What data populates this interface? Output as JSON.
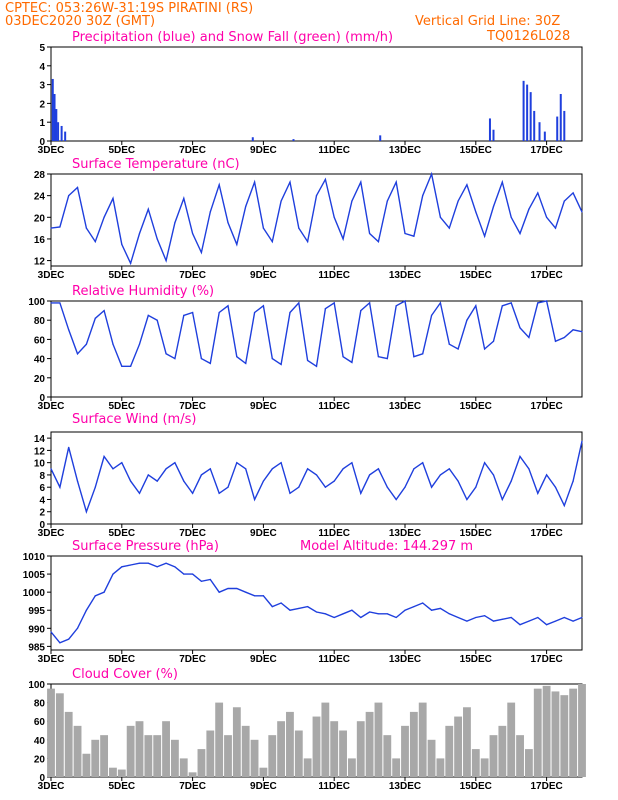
{
  "header": {
    "line1": "CPTEC:   053:26W-31:19S   PIRATINI (RS)",
    "line2": "03DEC2020 30Z (GMT)",
    "grid_note": "Vertical Grid Line: 30Z",
    "code": "TQ0126L028"
  },
  "colors": {
    "header": "#ff6a00",
    "title": "#ff00aa",
    "line": "#1f3fdd",
    "snow": "#00aa00",
    "cloud": "#a8a8a8",
    "arrow": "#000000"
  },
  "x_axis": {
    "labels": [
      "3DEC",
      "5DEC",
      "7DEC",
      "9DEC",
      "11DEC",
      "13DEC",
      "15DEC",
      "17DEC"
    ]
  },
  "chart_data": [
    {
      "type": "bar",
      "title": "Precipitation (blue) and Snow Fall (green) (mm/h)",
      "ylim": [
        0,
        5
      ],
      "yticks": [
        "0",
        "1",
        "2",
        "3",
        "4",
        "5"
      ],
      "series": [
        {
          "name": "Precipitation",
          "x": [
            0.05,
            0.1,
            0.15,
            0.2,
            0.3,
            0.4,
            5.7,
            6.85,
            9.3,
            12.4,
            12.5,
            13.35,
            13.45,
            13.55,
            13.65,
            13.8,
            13.95,
            14.3,
            14.4,
            14.5
          ],
          "values": [
            3.3,
            2.5,
            1.7,
            1.0,
            0.8,
            0.5,
            0.2,
            0.1,
            0.3,
            1.2,
            0.6,
            3.2,
            3.0,
            2.6,
            1.6,
            1.0,
            0.5,
            1.3,
            2.5,
            1.6
          ]
        },
        {
          "name": "Snow Fall",
          "x": [],
          "values": []
        }
      ]
    },
    {
      "type": "line",
      "title": "Surface Temperature (nC)",
      "ylim": [
        11,
        28
      ],
      "yticks": [
        "12",
        "16",
        "20",
        "24",
        "28"
      ],
      "x": [
        0,
        0.25,
        0.5,
        0.75,
        1,
        1.25,
        1.5,
        1.75,
        2,
        2.25,
        2.5,
        2.75,
        3,
        3.25,
        3.5,
        3.75,
        4,
        4.25,
        4.5,
        4.75,
        5,
        5.25,
        5.5,
        5.75,
        6,
        6.25,
        6.5,
        6.75,
        7,
        7.25,
        7.5,
        7.75,
        8,
        8.25,
        8.5,
        8.75,
        9,
        9.25,
        9.5,
        9.75,
        10,
        10.25,
        10.5,
        10.75,
        11,
        11.25,
        11.5,
        11.75,
        12,
        12.25,
        12.5,
        12.75,
        13,
        13.25,
        13.5,
        13.75,
        14,
        14.25,
        14.5,
        14.75,
        15
      ],
      "values": [
        18,
        18.2,
        24,
        25.5,
        18,
        15.5,
        20,
        23.5,
        15,
        11.5,
        17,
        21.5,
        16,
        12,
        19,
        23.5,
        17,
        13.5,
        21,
        26,
        19,
        15,
        22,
        26.5,
        18,
        15.5,
        23,
        26.5,
        18,
        15.5,
        24,
        27,
        20,
        16,
        23,
        26.5,
        17,
        15.5,
        23,
        26.5,
        17,
        16.5,
        24,
        28,
        20,
        18,
        23,
        26,
        21,
        16.5,
        22,
        26.5,
        20,
        17,
        21.5,
        24.5,
        20,
        18,
        23,
        24.5,
        21
      ]
    },
    {
      "type": "line",
      "title": "Relative Humidity (%)",
      "ylim": [
        0,
        100
      ],
      "yticks": [
        "0",
        "20",
        "40",
        "60",
        "80",
        "100"
      ],
      "x": [
        0,
        0.25,
        0.5,
        0.75,
        1,
        1.25,
        1.5,
        1.75,
        2,
        2.25,
        2.5,
        2.75,
        3,
        3.25,
        3.5,
        3.75,
        4,
        4.25,
        4.5,
        4.75,
        5,
        5.25,
        5.5,
        5.75,
        6,
        6.25,
        6.5,
        6.75,
        7,
        7.25,
        7.5,
        7.75,
        8,
        8.25,
        8.5,
        8.75,
        9,
        9.25,
        9.5,
        9.75,
        10,
        10.25,
        10.5,
        10.75,
        11,
        11.25,
        11.5,
        11.75,
        12,
        12.25,
        12.5,
        12.75,
        13,
        13.25,
        13.5,
        13.75,
        14,
        14.25,
        14.5,
        14.75,
        15
      ],
      "values": [
        98,
        98,
        70,
        45,
        55,
        82,
        90,
        55,
        32,
        32,
        55,
        85,
        80,
        45,
        40,
        85,
        88,
        40,
        35,
        88,
        95,
        42,
        35,
        88,
        95,
        40,
        34,
        88,
        98,
        38,
        32,
        92,
        98,
        42,
        36,
        90,
        98,
        42,
        40,
        95,
        100,
        42,
        45,
        85,
        98,
        55,
        50,
        80,
        95,
        50,
        58,
        95,
        98,
        72,
        62,
        98,
        100,
        58,
        62,
        70,
        68
      ]
    },
    {
      "type": "line",
      "title": "Surface Wind (m/s)",
      "ylim": [
        0,
        15
      ],
      "yticks": [
        "0",
        "2",
        "4",
        "6",
        "8",
        "10",
        "12",
        "14"
      ],
      "x": [
        0,
        0.25,
        0.5,
        0.75,
        1,
        1.25,
        1.5,
        1.75,
        2,
        2.25,
        2.5,
        2.75,
        3,
        3.25,
        3.5,
        3.75,
        4,
        4.25,
        4.5,
        4.75,
        5,
        5.25,
        5.5,
        5.75,
        6,
        6.25,
        6.5,
        6.75,
        7,
        7.25,
        7.5,
        7.75,
        8,
        8.25,
        8.5,
        8.75,
        9,
        9.25,
        9.5,
        9.75,
        10,
        10.25,
        10.5,
        10.75,
        11,
        11.25,
        11.5,
        11.75,
        12,
        12.25,
        12.5,
        12.75,
        13,
        13.25,
        13.5,
        13.75,
        14,
        14.25,
        14.5,
        14.75,
        15
      ],
      "values": [
        9,
        6,
        12.5,
        7,
        2,
        6,
        11,
        9,
        10,
        7,
        5,
        8,
        7,
        9,
        10,
        7,
        5,
        8,
        9,
        5,
        6,
        10,
        9,
        4,
        7,
        9,
        10,
        5,
        6,
        9,
        8,
        6,
        7,
        9,
        10,
        5,
        8,
        9,
        6,
        4,
        6,
        9,
        10,
        6,
        8,
        9,
        7,
        4,
        6,
        10,
        8,
        4,
        7,
        11,
        9,
        5,
        8,
        6,
        3,
        7,
        13.5
      ]
    },
    {
      "type": "line",
      "title": "Surface Pressure (hPa)",
      "annotation": "Model Altitude: 144.297 m",
      "ylim": [
        984,
        1010
      ],
      "yticks": [
        "985",
        "990",
        "995",
        "1000",
        "1005",
        "1010"
      ],
      "x": [
        0,
        0.25,
        0.5,
        0.75,
        1,
        1.25,
        1.5,
        1.75,
        2,
        2.25,
        2.5,
        2.75,
        3,
        3.25,
        3.5,
        3.75,
        4,
        4.25,
        4.5,
        4.75,
        5,
        5.25,
        5.5,
        5.75,
        6,
        6.25,
        6.5,
        6.75,
        7,
        7.25,
        7.5,
        7.75,
        8,
        8.25,
        8.5,
        8.75,
        9,
        9.25,
        9.5,
        9.75,
        10,
        10.25,
        10.5,
        10.75,
        11,
        11.25,
        11.5,
        11.75,
        12,
        12.25,
        12.5,
        12.75,
        13,
        13.25,
        13.5,
        13.75,
        14,
        14.25,
        14.5,
        14.75,
        15
      ],
      "values": [
        989,
        986,
        987,
        990,
        995,
        999,
        1000,
        1005,
        1007,
        1007.5,
        1008,
        1008,
        1007,
        1008,
        1007,
        1005,
        1005,
        1003,
        1003.5,
        1000,
        1001,
        1001,
        1000,
        999,
        999,
        996,
        997,
        995,
        995.5,
        996,
        994.5,
        994,
        993,
        994,
        995,
        993,
        994.5,
        994,
        994,
        993,
        995,
        996,
        997,
        995,
        995.5,
        994,
        993,
        992,
        993,
        993.5,
        992,
        992.5,
        993,
        991,
        992,
        993,
        991,
        992,
        993,
        992,
        993
      ]
    },
    {
      "type": "bar",
      "title": "Cloud Cover (%)",
      "ylim": [
        0,
        100
      ],
      "yticks": [
        "0",
        "20",
        "40",
        "60",
        "80",
        "100"
      ],
      "x": [
        0,
        0.25,
        0.5,
        0.75,
        1,
        1.25,
        1.5,
        1.75,
        2,
        2.25,
        2.5,
        2.75,
        3,
        3.25,
        3.5,
        3.75,
        4,
        4.25,
        4.5,
        4.75,
        5,
        5.25,
        5.5,
        5.75,
        6,
        6.25,
        6.5,
        6.75,
        7,
        7.25,
        7.5,
        7.75,
        8,
        8.25,
        8.5,
        8.75,
        9,
        9.25,
        9.5,
        9.75,
        10,
        10.25,
        10.5,
        10.75,
        11,
        11.25,
        11.5,
        11.75,
        12,
        12.25,
        12.5,
        12.75,
        13,
        13.25,
        13.5,
        13.75,
        14,
        14.25,
        14.5,
        14.75,
        15
      ],
      "values": [
        95,
        90,
        70,
        55,
        25,
        40,
        45,
        10,
        8,
        55,
        60,
        45,
        45,
        60,
        40,
        20,
        5,
        30,
        50,
        80,
        45,
        75,
        55,
        40,
        10,
        45,
        60,
        70,
        50,
        20,
        65,
        80,
        60,
        50,
        20,
        60,
        70,
        80,
        45,
        20,
        55,
        70,
        80,
        40,
        20,
        55,
        65,
        75,
        30,
        20,
        45,
        55,
        80,
        45,
        30,
        95,
        98,
        92,
        88,
        95,
        100
      ]
    }
  ]
}
